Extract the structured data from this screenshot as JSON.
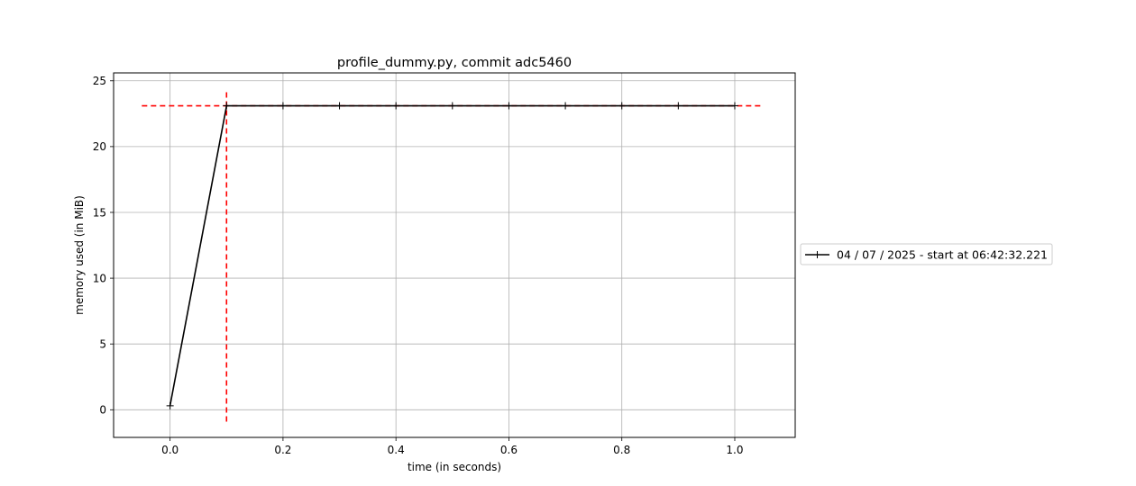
{
  "chart_data": {
    "type": "line",
    "title": "profile_dummy.py, commit adc5460",
    "xlabel": "time (in seconds)",
    "ylabel": "memory used (in MiB)",
    "xlim": [
      -0.1,
      1.107
    ],
    "ylim": [
      -2.1,
      25.6
    ],
    "xticks": [
      0.0,
      0.2,
      0.4,
      0.6,
      0.8,
      1.0
    ],
    "xtick_labels": [
      "0.0",
      "0.2",
      "0.4",
      "0.6",
      "0.8",
      "1.0"
    ],
    "yticks": [
      0,
      5,
      10,
      15,
      20,
      25
    ],
    "ytick_labels": [
      "0",
      "5",
      "10",
      "15",
      "20",
      "25"
    ],
    "grid": true,
    "legend_placement": "right-center, outside plot",
    "series": [
      {
        "name": "04 / 07 / 2025 - start at 06:42:32.221",
        "color": "#000000",
        "marker": "+",
        "x": [
          0.0,
          0.1,
          0.2,
          0.3,
          0.4,
          0.5,
          0.6,
          0.7,
          0.8,
          0.9,
          1.0
        ],
        "y": [
          0.3,
          23.1,
          23.1,
          23.1,
          23.1,
          23.1,
          23.1,
          23.1,
          23.1,
          23.1,
          23.1
        ]
      }
    ],
    "annotations": {
      "peak_hline": {
        "y": 23.1,
        "x_from": -0.05,
        "x_to": 1.05,
        "color": "#ff0000",
        "style": "dashed"
      },
      "peak_vline": {
        "x": 0.1,
        "y_from": -0.9,
        "y_to": 24.3,
        "color": "#ff0000",
        "style": "dashed"
      }
    }
  }
}
